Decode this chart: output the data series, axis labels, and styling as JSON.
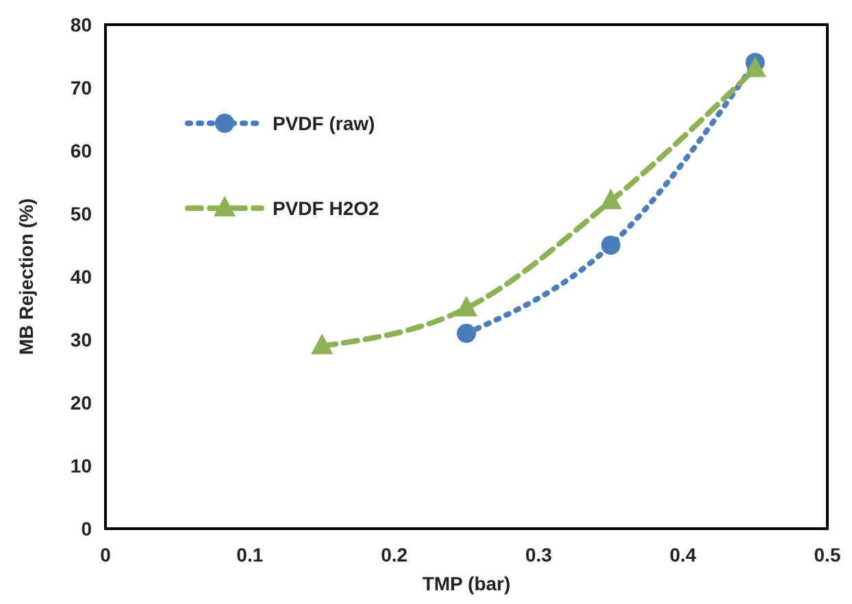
{
  "chart_data": {
    "type": "line",
    "xlabel": "TMP (bar)",
    "ylabel": "MB Rejection (%)",
    "xlim": [
      0,
      0.5
    ],
    "xticks": [
      0,
      0.1,
      0.2,
      0.3,
      0.4,
      0.5
    ],
    "ylim": [
      0,
      80
    ],
    "yticks": [
      0,
      10,
      20,
      30,
      40,
      50,
      60,
      70,
      80
    ],
    "grid": false,
    "legend": "top left",
    "series": [
      {
        "name": "PVDF (raw)",
        "color": "#4a7ebb",
        "x": [
          0.25,
          0.35,
          0.45
        ],
        "values": [
          31,
          45,
          74
        ],
        "marker": "circle",
        "line_style": "dotted"
      },
      {
        "name": "PVDF H2O2",
        "color": "#8db255",
        "x": [
          0.15,
          0.25,
          0.35,
          0.45
        ],
        "values": [
          29,
          35,
          52,
          73
        ],
        "marker": "triangle",
        "line_style": "dashed"
      }
    ]
  }
}
